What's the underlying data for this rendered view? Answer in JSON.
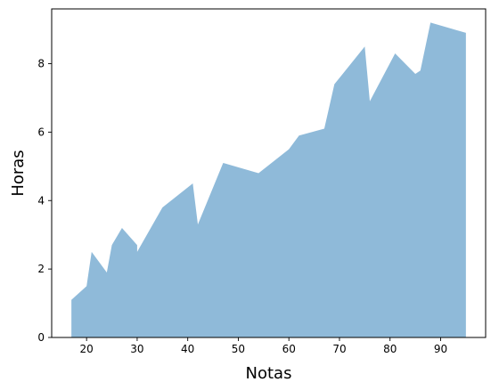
{
  "chart_data": {
    "type": "area",
    "title": "",
    "xlabel": "Notas",
    "ylabel": "Horas",
    "xlim": [
      13.1,
      98.9
    ],
    "ylim": [
      0,
      9.6
    ],
    "xticks": [
      20,
      30,
      40,
      50,
      60,
      70,
      80,
      90
    ],
    "yticks": [
      0,
      2,
      4,
      6,
      8
    ],
    "grid": false,
    "fill_color": "#8fbad9",
    "x": [
      17,
      20,
      21,
      24,
      25,
      27,
      30,
      30,
      35,
      41,
      42,
      47,
      54,
      60,
      62,
      67,
      69,
      75,
      76,
      81,
      85,
      86,
      88,
      95
    ],
    "y": [
      1.1,
      1.5,
      2.5,
      1.9,
      2.7,
      3.2,
      2.7,
      2.5,
      3.8,
      4.5,
      3.3,
      5.1,
      4.8,
      5.5,
      5.9,
      6.1,
      7.4,
      8.5,
      6.9,
      8.3,
      7.7,
      7.8,
      9.2,
      8.9
    ]
  }
}
